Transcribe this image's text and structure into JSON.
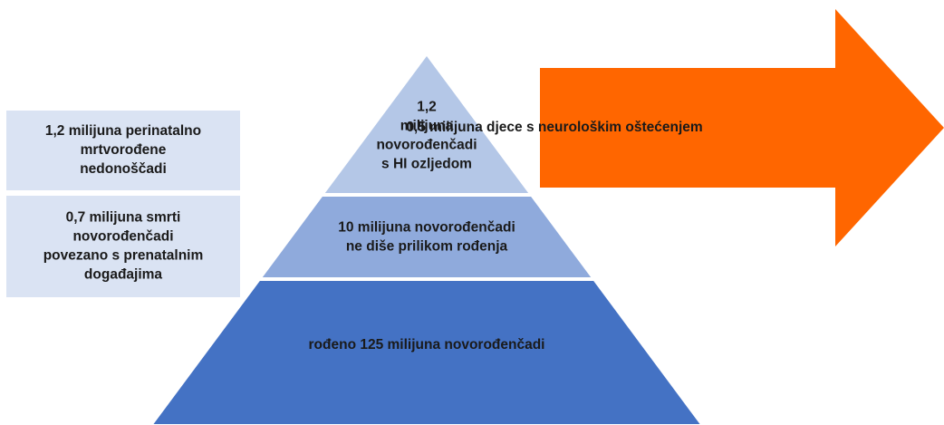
{
  "left_boxes": [
    {
      "lines": [
        "1,2 milijuna perinatalno",
        "mrtvorođene",
        "nedonoščadi"
      ]
    },
    {
      "lines": [
        "0,7 milijuna smrti",
        "novorođenčadi",
        "povezano s prenatalnim",
        "događajima"
      ]
    }
  ],
  "pyramid": [
    {
      "lines": [
        "1,2",
        "milijuna",
        "novorođenčadi",
        "s HI ozljedom"
      ]
    },
    {
      "lines": [
        "10 milijuna novorođenčadi",
        "ne diše prilikom rođenja"
      ]
    },
    {
      "lines": [
        "rođeno 125 milijuna novorođenčadi"
      ]
    }
  ],
  "arrow": {
    "text": "0,5 milijuna djece s neurološkim oštećenjem"
  }
}
